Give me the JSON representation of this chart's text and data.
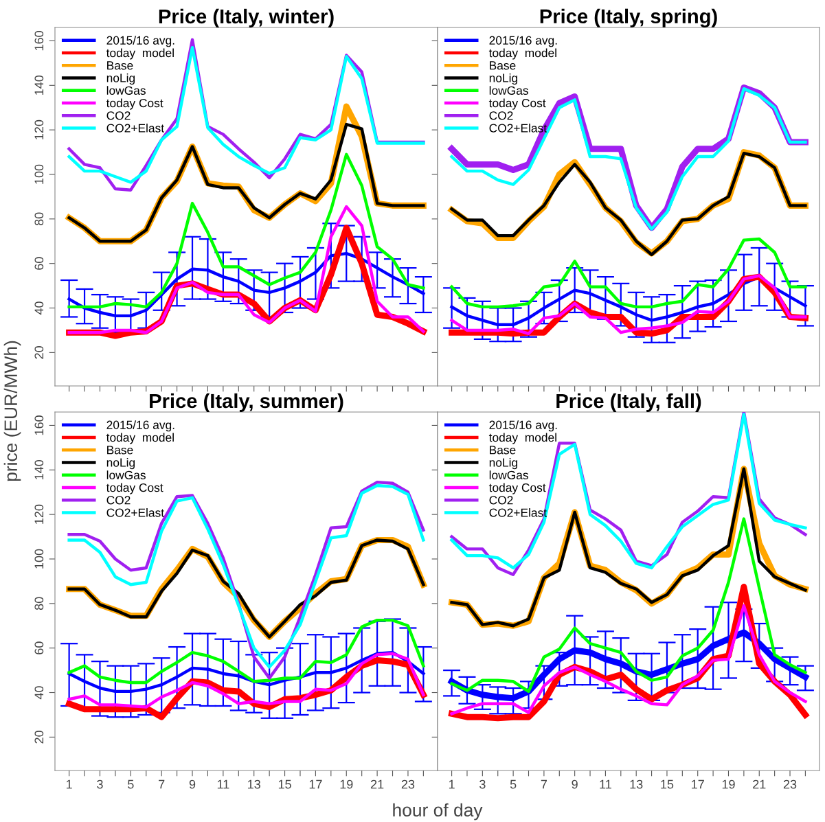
{
  "chart_data": [
    {
      "type": "line",
      "title": "Price (Italy, winter)",
      "ylabel": "price (EUR/MWh)",
      "tick_labels": "y",
      "legend": "top left",
      "grid": false,
      "marker": "none",
      "line_style": "solid",
      "x": [
        1,
        2,
        3,
        4,
        5,
        6,
        7,
        8,
        9,
        10,
        11,
        12,
        13,
        14,
        15,
        16,
        17,
        18,
        19,
        20,
        21,
        22,
        23,
        24
      ],
      "xlim": [
        0.08,
        24.92
      ],
      "ylim": [
        5,
        166
      ],
      "xticks": [
        1,
        {
          "value": 2,
          "label": null
        },
        3,
        {
          "value": 4,
          "label": null
        },
        5,
        {
          "value": 6,
          "label": null
        },
        7,
        {
          "value": 8,
          "label": null
        },
        9,
        {
          "value": 10,
          "label": null
        },
        11,
        {
          "value": 12,
          "label": null
        },
        13,
        {
          "value": 14,
          "label": null
        },
        15,
        {
          "value": 16,
          "label": null
        },
        17,
        {
          "value": 18,
          "label": null
        },
        19,
        {
          "value": 20,
          "label": null
        },
        21,
        {
          "value": 22,
          "label": null
        },
        23,
        {
          "value": 24,
          "label": null
        }
      ],
      "yticks": [
        20,
        40,
        60,
        80,
        100,
        120,
        140,
        160
      ],
      "series": [
        {
          "name": "2015/16 avg.",
          "color": "#0000ff",
          "values": [
            44,
            40,
            38,
            36.5,
            36.5,
            39,
            46,
            53,
            57.5,
            57,
            54,
            52,
            48,
            47,
            49,
            52,
            56,
            63.5,
            64.5,
            62,
            58,
            54,
            50.5,
            46.5
          ],
          "errors": [
            [
              36,
              52.5
            ],
            [
              33,
              48.5
            ],
            [
              31,
              46
            ],
            [
              29,
              45
            ],
            [
              29,
              44
            ],
            [
              31,
              47
            ],
            [
              39,
              56
            ],
            [
              41,
              65
            ],
            [
              44,
              72
            ],
            [
              44,
              71
            ],
            [
              43,
              65
            ],
            [
              42,
              62
            ],
            [
              39,
              57
            ],
            [
              36,
              56
            ],
            [
              38,
              60
            ],
            [
              40,
              63
            ],
            [
              44,
              67
            ],
            [
              49,
              78
            ],
            [
              52,
              77
            ],
            [
              52,
              72
            ],
            [
              49,
              65
            ],
            [
              45,
              62
            ],
            [
              42,
              58
            ],
            [
              38,
              54
            ]
          ]
        },
        {
          "name": "today  model",
          "color": "#ff0000",
          "values": [
            29,
            29,
            29,
            27.5,
            29,
            29.5,
            34,
            50,
            51,
            48.5,
            46,
            46,
            42,
            34,
            40,
            43.5,
            39,
            55,
            76,
            60,
            37,
            36,
            33,
            29.5
          ]
        },
        {
          "name": "Base",
          "color": "#ffa500",
          "values": [
            80.5,
            76,
            70,
            70,
            70,
            75,
            89.5,
            97,
            112.5,
            96,
            95,
            94.5,
            84,
            80.5,
            86.5,
            91.5,
            88,
            96,
            130.5,
            117,
            87,
            86,
            86,
            86
          ]
        },
        {
          "name": "noLig",
          "color": "#000000",
          "values": [
            80.5,
            76,
            70,
            70,
            70,
            75,
            89.5,
            97.5,
            112.5,
            95.5,
            94,
            94,
            85,
            80.5,
            86.5,
            91.5,
            89,
            97.5,
            122.5,
            120.5,
            87,
            86,
            86,
            86
          ]
        },
        {
          "name": "lowGas",
          "color": "#00ff00",
          "values": [
            40.5,
            40.5,
            40.5,
            42,
            41.5,
            40.5,
            47,
            60,
            87,
            74,
            58.5,
            58.5,
            54.5,
            50.5,
            53.5,
            56,
            65,
            84,
            109,
            95,
            67.5,
            62,
            50.5,
            49
          ]
        },
        {
          "name": "today Cost",
          "color": "#ff00ff",
          "values": [
            29,
            29,
            29,
            30,
            30,
            29,
            34,
            49,
            51.5,
            47,
            46,
            46,
            37,
            33.5,
            40,
            43.5,
            38.5,
            72,
            85.5,
            77,
            43,
            36,
            36,
            29.5
          ]
        },
        {
          "name": "CO2",
          "color": "#a020f0",
          "values": [
            111.5,
            104.5,
            103,
            93.5,
            93,
            104,
            115.5,
            125,
            160.5,
            121.5,
            118,
            111.5,
            105.5,
            98.5,
            107,
            118,
            116,
            122.5,
            153.5,
            146,
            114.5,
            114.5,
            114.5,
            114.5
          ]
        },
        {
          "name": "CO2+Elast",
          "color": "#00ffff",
          "values": [
            108,
            101.5,
            101.5,
            99,
            96.5,
            101.5,
            115.5,
            121.5,
            157,
            121,
            113.5,
            108,
            104,
            100.5,
            103,
            116.5,
            115.5,
            120,
            153,
            143,
            114,
            114,
            114,
            114
          ]
        }
      ]
    },
    {
      "type": "line",
      "title": "Price (Italy, spring)",
      "tick_labels": false,
      "legend": "top left",
      "grid": false,
      "marker": "none",
      "line_style": "solid",
      "x": [
        1,
        2,
        3,
        4,
        5,
        6,
        7,
        8,
        9,
        10,
        11,
        12,
        13,
        14,
        15,
        16,
        17,
        18,
        19,
        20,
        21,
        22,
        23,
        24
      ],
      "xlim": [
        0.08,
        24.92
      ],
      "ylim": [
        5,
        166
      ],
      "xticks": [
        1,
        {
          "value": 2,
          "label": null
        },
        3,
        {
          "value": 4,
          "label": null
        },
        5,
        {
          "value": 6,
          "label": null
        },
        7,
        {
          "value": 8,
          "label": null
        },
        9,
        {
          "value": 10,
          "label": null
        },
        11,
        {
          "value": 12,
          "label": null
        },
        13,
        {
          "value": 14,
          "label": null
        },
        15,
        {
          "value": 16,
          "label": null
        },
        17,
        {
          "value": 18,
          "label": null
        },
        19,
        {
          "value": 20,
          "label": null
        },
        21,
        {
          "value": 22,
          "label": null
        },
        23,
        {
          "value": 24,
          "label": null
        }
      ],
      "yticks": [
        20,
        40,
        60,
        80,
        100,
        120,
        140,
        160
      ],
      "series": [
        {
          "name": "2015/16 avg.",
          "color": "#0000ff",
          "values": [
            40.5,
            36.5,
            34.5,
            32.5,
            32.5,
            35.5,
            40,
            44,
            48,
            46.5,
            43.5,
            40.5,
            37,
            34.5,
            36,
            38,
            40.5,
            42,
            46,
            51,
            54,
            49,
            45,
            41
          ],
          "errors": [
            [
              31,
              49
            ],
            [
              28.5,
              44.5
            ],
            [
              26,
              43
            ],
            [
              25,
              40
            ],
            [
              25,
              40
            ],
            [
              27,
              43
            ],
            [
              33,
              47
            ],
            [
              34,
              52.5
            ],
            [
              38,
              58
            ],
            [
              38,
              57
            ],
            [
              35,
              54
            ],
            [
              32,
              51
            ],
            [
              27,
              47
            ],
            [
              24.5,
              45
            ],
            [
              24.5,
              46
            ],
            [
              26.5,
              50
            ],
            [
              29.5,
              52
            ],
            [
              31.5,
              52.5
            ],
            [
              34,
              57
            ],
            [
              39,
              64
            ],
            [
              41,
              67
            ],
            [
              39,
              60
            ],
            [
              36,
              52
            ],
            [
              32,
              50
            ]
          ]
        },
        {
          "name": "today  model",
          "color": "#ff0000",
          "values": [
            29,
            29,
            29,
            29,
            28.5,
            29,
            29,
            36,
            42,
            38,
            36,
            36,
            29,
            28.5,
            30,
            36,
            36,
            36,
            43,
            53,
            54,
            47,
            36,
            35.5
          ]
        },
        {
          "name": "Base",
          "color": "#ffa500",
          "values": [
            84,
            79,
            78,
            71.5,
            71.5,
            79,
            85.5,
            100,
            105.5,
            95.5,
            85,
            79,
            69.5,
            64.5,
            70,
            79,
            80,
            86,
            89,
            110,
            108.5,
            103,
            86,
            86
          ]
        },
        {
          "name": "noLig",
          "color": "#000000",
          "values": [
            84.5,
            79.5,
            79.5,
            72.5,
            72.5,
            79.5,
            86,
            96.5,
            104.5,
            96.5,
            85,
            79.5,
            70,
            64,
            70,
            79.5,
            80,
            86,
            90,
            109.5,
            108,
            103,
            86,
            86
          ]
        },
        {
          "name": "lowGas",
          "color": "#00ff00",
          "values": [
            49.5,
            42,
            40.5,
            40.5,
            41,
            42,
            49.5,
            50.5,
            61,
            49.5,
            49.5,
            42,
            40.5,
            40.5,
            42,
            43,
            50.5,
            49.5,
            57.5,
            70.5,
            71,
            65,
            49.5,
            49.5
          ]
        },
        {
          "name": "today Cost",
          "color": "#ff00ff",
          "values": [
            34.5,
            30,
            30,
            30,
            30.5,
            28.5,
            35.5,
            36.5,
            42,
            36,
            35.5,
            29,
            30.5,
            31,
            32,
            33.5,
            38.5,
            38,
            43,
            53,
            54.5,
            49,
            36,
            36
          ]
        },
        {
          "name": "CO2",
          "color": "#a020f0",
          "values": [
            111.5,
            104.5,
            104.5,
            104.5,
            102,
            104.5,
            120,
            132,
            135,
            111.5,
            111.5,
            111.5,
            86,
            76,
            84.5,
            103.5,
            111.5,
            111.5,
            116,
            139,
            136.5,
            130,
            114.5,
            114.5
          ]
        },
        {
          "name": "CO2+Elast",
          "color": "#00ffff",
          "values": [
            108,
            101.5,
            101.5,
            97.5,
            95.5,
            102,
            116,
            130,
            133.5,
            108,
            108,
            107,
            85,
            75.5,
            83,
            99,
            108,
            108,
            115,
            138.5,
            135.5,
            130,
            114.5,
            114.5
          ]
        }
      ]
    },
    {
      "type": "line",
      "title": "Price (Italy, summer)",
      "xlabel": "hour of day",
      "legend": "top left",
      "grid": false,
      "marker": "none",
      "line_style": "solid",
      "x": [
        1,
        2,
        3,
        4,
        5,
        6,
        7,
        8,
        9,
        10,
        11,
        12,
        13,
        14,
        15,
        16,
        17,
        18,
        19,
        20,
        21,
        22,
        23,
        24
      ],
      "xlim": [
        0.08,
        24.92
      ],
      "ylim": [
        5,
        166
      ],
      "xticks": [
        1,
        {
          "value": 2,
          "label": null
        },
        3,
        {
          "value": 4,
          "label": null
        },
        5,
        {
          "value": 6,
          "label": null
        },
        7,
        {
          "value": 8,
          "label": null
        },
        9,
        {
          "value": 10,
          "label": null
        },
        11,
        {
          "value": 12,
          "label": null
        },
        13,
        {
          "value": 14,
          "label": null
        },
        15,
        {
          "value": 16,
          "label": null
        },
        17,
        {
          "value": 18,
          "label": null
        },
        19,
        {
          "value": 20,
          "label": null
        },
        21,
        {
          "value": 22,
          "label": null
        },
        23,
        {
          "value": 24,
          "label": null
        }
      ],
      "yticks": [
        20,
        40,
        60,
        80,
        100,
        120,
        140,
        160
      ],
      "series": [
        {
          "name": "2015/16 avg.",
          "color": "#0000ff",
          "values": [
            48.5,
            45,
            42,
            40.5,
            40.5,
            41.5,
            43.5,
            47,
            51,
            50.5,
            48.5,
            47.5,
            45,
            43.5,
            45.5,
            47,
            49,
            49,
            51,
            54.5,
            57.5,
            58,
            54,
            48.5
          ],
          "errors": [
            [
              34,
              62
            ],
            [
              33,
              57
            ],
            [
              29.5,
              54
            ],
            [
              29,
              52
            ],
            [
              29,
              52
            ],
            [
              30,
              53
            ],
            [
              31,
              55.5
            ],
            [
              33,
              60.5
            ],
            [
              34.5,
              66.5
            ],
            [
              34,
              66.5
            ],
            [
              34,
              64
            ],
            [
              32,
              63
            ],
            [
              31,
              57
            ],
            [
              28.5,
              58
            ],
            [
              28.5,
              60
            ],
            [
              30,
              62
            ],
            [
              32,
              66
            ],
            [
              33,
              65
            ],
            [
              35.5,
              66.5
            ],
            [
              40,
              69
            ],
            [
              43,
              72
            ],
            [
              43,
              73
            ],
            [
              40,
              69
            ],
            [
              36,
              60.5
            ]
          ]
        },
        {
          "name": "today  model",
          "color": "#ff0000",
          "values": [
            35,
            32.5,
            32.5,
            32.5,
            32.5,
            33,
            29,
            37.5,
            45,
            44.5,
            41,
            40.5,
            35,
            33.5,
            37,
            37.5,
            39,
            41,
            47,
            52,
            54.5,
            54,
            52.5,
            39
          ]
        },
        {
          "name": "Base",
          "color": "#ffa500",
          "values": [
            86.5,
            86.5,
            79.5,
            77,
            74.5,
            74.5,
            86.5,
            95,
            104.5,
            101,
            89.5,
            83,
            72.5,
            65,
            72,
            78,
            84.5,
            90,
            91,
            106,
            108.5,
            108.5,
            105.5,
            88.5
          ]
        },
        {
          "name": "noLig",
          "color": "#000000",
          "values": [
            86.5,
            86.5,
            79.5,
            77,
            74,
            74,
            85.5,
            93.5,
            104,
            101.5,
            90,
            84.5,
            73,
            65,
            72,
            79.5,
            83.5,
            89.5,
            90.5,
            106,
            108.5,
            108,
            104.5,
            88.5
          ]
        },
        {
          "name": "lowGas",
          "color": "#00ff00",
          "values": [
            49,
            52,
            47,
            45.5,
            44.5,
            44.5,
            49.5,
            53.5,
            58,
            56.5,
            54,
            49.5,
            45,
            45.5,
            46.5,
            46.5,
            54,
            53.5,
            57,
            69.5,
            72.5,
            72.5,
            70,
            52
          ]
        },
        {
          "name": "today Cost",
          "color": "#ff00ff",
          "values": [
            37,
            38.5,
            34.5,
            34.5,
            34,
            33.5,
            38,
            41,
            44.5,
            43,
            39.5,
            35,
            36,
            35,
            36,
            36,
            41.5,
            41,
            44,
            53,
            57,
            57.5,
            55,
            39
          ]
        },
        {
          "name": "CO2",
          "color": "#a020f0",
          "values": [
            111,
            111,
            108,
            100,
            95,
            96,
            116,
            128,
            128.5,
            116,
            100.5,
            80,
            56,
            46.5,
            56,
            74,
            93,
            114,
            114.5,
            130.5,
            134.5,
            134,
            130,
            113
          ]
        },
        {
          "name": "CO2+Elast",
          "color": "#00ffff",
          "values": [
            108.5,
            108.5,
            103,
            92,
            88.5,
            89.5,
            112.5,
            126,
            127.5,
            113.5,
            97.5,
            79,
            60,
            51.5,
            59,
            70.5,
            90,
            109.5,
            110.5,
            129.5,
            133,
            132.5,
            129,
            108.5
          ]
        }
      ]
    },
    {
      "type": "line",
      "title": "Price (Italy, fall)",
      "tick_labels": "x",
      "legend": "top left",
      "grid": false,
      "marker": "none",
      "line_style": "solid",
      "x": [
        1,
        2,
        3,
        4,
        5,
        6,
        7,
        8,
        9,
        10,
        11,
        12,
        13,
        14,
        15,
        16,
        17,
        18,
        19,
        20,
        21,
        22,
        23,
        24
      ],
      "xlim": [
        0.08,
        24.92
      ],
      "ylim": [
        5,
        166
      ],
      "xticks": [
        1,
        {
          "value": 2,
          "label": null
        },
        3,
        {
          "value": 4,
          "label": null
        },
        5,
        {
          "value": 6,
          "label": null
        },
        7,
        {
          "value": 8,
          "label": null
        },
        9,
        {
          "value": 10,
          "label": null
        },
        11,
        {
          "value": 12,
          "label": null
        },
        13,
        {
          "value": 14,
          "label": null
        },
        15,
        {
          "value": 16,
          "label": null
        },
        17,
        {
          "value": 18,
          "label": null
        },
        19,
        {
          "value": 20,
          "label": null
        },
        21,
        {
          "value": 22,
          "label": null
        },
        23,
        {
          "value": 24,
          "label": null
        }
      ],
      "yticks": [
        20,
        40,
        60,
        80,
        100,
        120,
        140,
        160
      ],
      "series": [
        {
          "name": "2015/16 avg.",
          "color": "#0000ff",
          "values": [
            45,
            41,
            39,
            38,
            37.5,
            40.5,
            48,
            55,
            59,
            58,
            55,
            53,
            49.5,
            48,
            50.5,
            53,
            55,
            61,
            64,
            67,
            62,
            55,
            51,
            47
          ],
          "errors": [
            [
              38.5,
              50
            ],
            [
              35,
              47
            ],
            [
              32.5,
              43.5
            ],
            [
              30.5,
              42.5
            ],
            [
              30.5,
              42
            ],
            [
              33,
              45
            ],
            [
              37,
              52
            ],
            [
              43,
              58
            ],
            [
              43.5,
              74.5
            ],
            [
              43.5,
              65
            ],
            [
              42,
              67.5
            ],
            [
              40,
              64.5
            ],
            [
              36.5,
              57.5
            ],
            [
              36.5,
              57.5
            ],
            [
              40,
              62.5
            ],
            [
              42,
              66
            ],
            [
              42,
              68.5
            ],
            [
              41.5,
              78.5
            ],
            [
              46.5,
              80.5
            ],
            [
              54,
              77.5
            ],
            [
              51,
              71
            ],
            [
              45,
              60
            ],
            [
              43.5,
              56
            ],
            [
              41,
              52
            ]
          ]
        },
        {
          "name": "today  model",
          "color": "#ff0000",
          "values": [
            30.5,
            29,
            29,
            28.5,
            29,
            29,
            36,
            48,
            51.5,
            49.5,
            46,
            48,
            41.5,
            37,
            41,
            43.5,
            46.5,
            55,
            56.5,
            87.5,
            53,
            45,
            39,
            30
          ]
        },
        {
          "name": "Base",
          "color": "#ffa500",
          "values": [
            80.5,
            79.5,
            70.5,
            71,
            70,
            72,
            91.5,
            98,
            121,
            97,
            95,
            89.5,
            86,
            80,
            84,
            93,
            96,
            102,
            102,
            140.5,
            107,
            92.5,
            88.5,
            86.5
          ]
        },
        {
          "name": "noLig",
          "color": "#000000",
          "values": [
            80.5,
            79.5,
            70.5,
            71.5,
            70,
            73,
            91.5,
            95,
            121,
            96,
            94,
            89,
            86.5,
            80.5,
            84,
            92.5,
            95,
            101.5,
            106,
            140.5,
            99,
            92,
            89,
            86
          ]
        },
        {
          "name": "lowGas",
          "color": "#00ff00",
          "values": [
            44,
            41,
            45.5,
            45.5,
            45,
            40.5,
            56,
            59.5,
            69,
            62,
            60,
            58,
            49.5,
            45.5,
            47,
            56.5,
            60,
            68,
            89.5,
            118,
            87,
            57,
            52.5,
            49
          ]
        },
        {
          "name": "today Cost",
          "color": "#ff00ff",
          "values": [
            30.5,
            33,
            35,
            35,
            35,
            31,
            43,
            49,
            51.5,
            48,
            45,
            41.5,
            38.5,
            35,
            34.5,
            43.5,
            47.5,
            54.5,
            55,
            79,
            57,
            45,
            40,
            36
          ]
        },
        {
          "name": "CO2",
          "color": "#a020f0",
          "values": [
            110,
            104.5,
            104.5,
            96,
            93,
            104,
            118,
            152,
            152,
            122,
            118,
            113,
            99,
            97,
            102,
            116.5,
            121.5,
            128,
            127.5,
            166,
            127,
            118.5,
            115.5,
            111
          ]
        },
        {
          "name": "CO2+Elast",
          "color": "#00ffff",
          "values": [
            108.5,
            101.5,
            101.5,
            100.5,
            96,
            102,
            116.5,
            147,
            151.5,
            120,
            115,
            108,
            98,
            96,
            105.5,
            114.5,
            119.5,
            124.5,
            126.5,
            165,
            125,
            117.5,
            115.5,
            114
          ]
        }
      ]
    }
  ]
}
